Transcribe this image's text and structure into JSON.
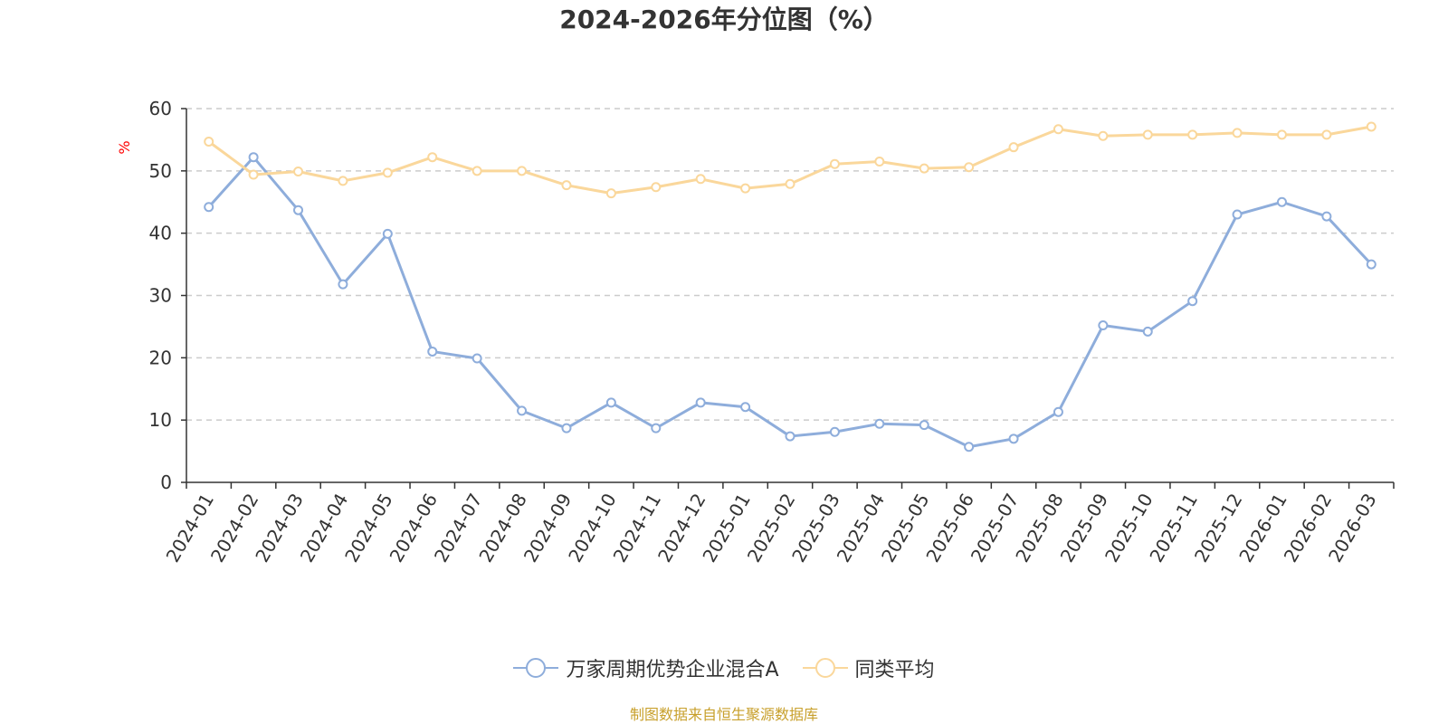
{
  "chart_data": {
    "type": "line",
    "title": "2024-2026年分位图（%）",
    "ylabel": "%",
    "xlabel": "",
    "ylim": [
      0,
      60
    ],
    "yticks": [
      0,
      10,
      20,
      30,
      40,
      50,
      60
    ],
    "grid": "horizontal dashed",
    "legend_position": "bottom-center",
    "categories": [
      "2024-01",
      "2024-02",
      "2024-03",
      "2024-04",
      "2024-05",
      "2024-06",
      "2024-07",
      "2024-08",
      "2024-09",
      "2024-10",
      "2024-11",
      "2024-12",
      "2025-01",
      "2025-02",
      "2025-03",
      "2025-04",
      "2025-05",
      "2025-06",
      "2025-07",
      "2025-08",
      "2025-09",
      "2025-10",
      "2025-11",
      "2025-12",
      "2026-01",
      "2026-02",
      "2026-03"
    ],
    "series": [
      {
        "name": "万家周期优势企业混合A",
        "color": "#8eaddb",
        "values": [
          44.2,
          52.2,
          43.7,
          31.8,
          39.9,
          21.0,
          19.9,
          11.5,
          8.7,
          12.8,
          8.7,
          12.8,
          12.1,
          7.4,
          8.1,
          9.4,
          9.2,
          5.7,
          7.0,
          11.3,
          25.2,
          24.2,
          29.1,
          43.0,
          45.0,
          42.7,
          35.0
        ]
      },
      {
        "name": "同类平均",
        "color": "#fad79b",
        "values": [
          54.7,
          49.4,
          49.9,
          48.4,
          49.7,
          52.2,
          50.0,
          50.0,
          47.7,
          46.4,
          47.4,
          48.7,
          47.2,
          47.9,
          51.1,
          51.5,
          50.4,
          50.6,
          53.8,
          56.7,
          55.6,
          55.8,
          55.8,
          56.1,
          55.8,
          55.8,
          57.1
        ]
      }
    ]
  },
  "source_note": "制图数据来自恒生聚源数据库"
}
